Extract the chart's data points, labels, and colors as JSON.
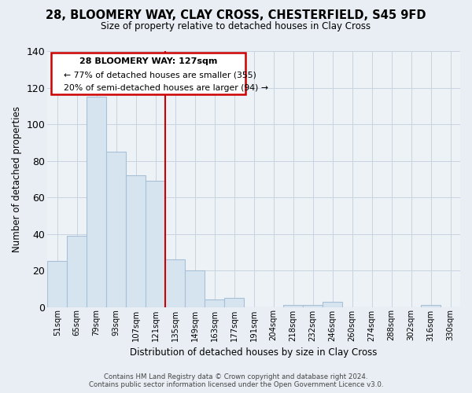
{
  "title": "28, BLOOMERY WAY, CLAY CROSS, CHESTERFIELD, S45 9FD",
  "subtitle": "Size of property relative to detached houses in Clay Cross",
  "xlabel": "Distribution of detached houses by size in Clay Cross",
  "ylabel": "Number of detached properties",
  "bar_labels": [
    "51sqm",
    "65sqm",
    "79sqm",
    "93sqm",
    "107sqm",
    "121sqm",
    "135sqm",
    "149sqm",
    "163sqm",
    "177sqm",
    "191sqm",
    "204sqm",
    "218sqm",
    "232sqm",
    "246sqm",
    "260sqm",
    "274sqm",
    "288sqm",
    "302sqm",
    "316sqm",
    "330sqm"
  ],
  "bar_values": [
    25,
    39,
    115,
    85,
    72,
    69,
    26,
    20,
    4,
    5,
    0,
    0,
    1,
    1,
    3,
    0,
    0,
    0,
    0,
    1,
    0
  ],
  "bar_color": "#d6e4f0",
  "bar_edge_color": "#a8c0d6",
  "ylim": [
    0,
    140
  ],
  "yticks": [
    0,
    20,
    40,
    60,
    80,
    100,
    120,
    140
  ],
  "vline_x": 6.0,
  "vline_color": "#cc0000",
  "annotation_title": "28 BLOOMERY WAY: 127sqm",
  "annotation_line1": "← 77% of detached houses are smaller (355)",
  "annotation_line2": "20% of semi-detached houses are larger (94) →",
  "footer_line1": "Contains HM Land Registry data © Crown copyright and database right 2024.",
  "footer_line2": "Contains public sector information licensed under the Open Government Licence v3.0.",
  "background_color": "#e8eef4",
  "plot_bg_color": "#edf2f7",
  "grid_color": "#c8d4e0"
}
